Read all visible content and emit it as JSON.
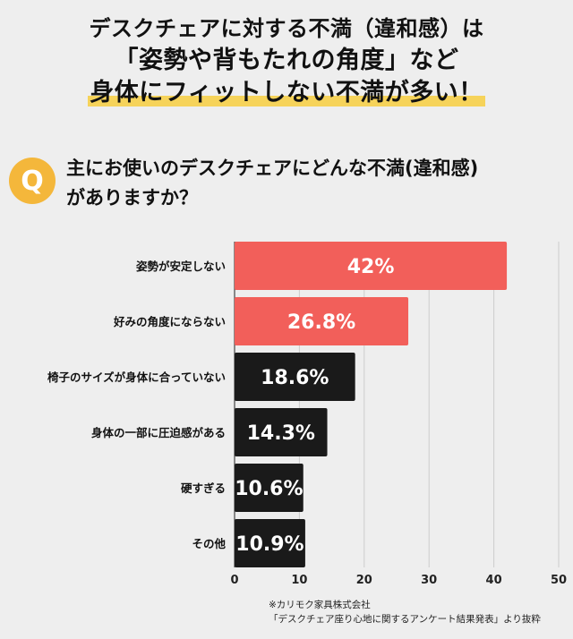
{
  "headline": {
    "line1": "デスクチェアに対する不満（違和感）は",
    "line2": "「姿勢や背もたれの角度」など",
    "line3": "身体にフィットしない不満が多い！"
  },
  "question": {
    "badge": "Q",
    "line1": "主にお使いのデスクチェアにどんな不満(違和感)",
    "line2": "がありますか？"
  },
  "chart_data": {
    "type": "bar",
    "orientation": "horizontal",
    "categories": [
      "姿勢が安定しない",
      "好みの角度にならない",
      "椅子のサイズが身体に合っていない",
      "身体の一部に圧迫感がある",
      "硬すぎる",
      "その他"
    ],
    "values": [
      42,
      26.8,
      18.6,
      14.3,
      10.6,
      10.9
    ],
    "value_labels": [
      "42%",
      "26.8%",
      "18.6%",
      "14.3%",
      "10.6%",
      "10.9%"
    ],
    "bar_colors": [
      "#f25f5a",
      "#f25f5a",
      "#1a1a1a",
      "#1a1a1a",
      "#1a1a1a",
      "#1a1a1a"
    ],
    "xlim": [
      0,
      50
    ],
    "xticks": [
      0,
      10,
      20,
      30,
      40,
      50
    ],
    "grid": true,
    "title": "",
    "xlabel": "",
    "ylabel": ""
  },
  "footnote": {
    "line1": "※カリモク家具株式会社",
    "line2": "「デスクチェア座り心地に関するアンケート結果発表」より抜粋"
  }
}
